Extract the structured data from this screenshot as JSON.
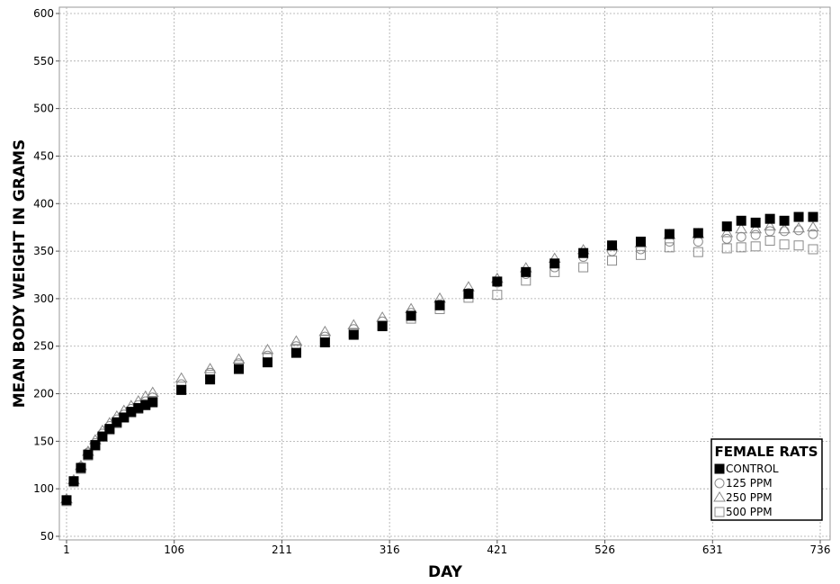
{
  "chart_data": {
    "type": "scatter",
    "title": "",
    "xlabel": "DAY",
    "ylabel": "MEAN BODY WEIGHT IN GRAMS",
    "xlim": [
      1,
      736
    ],
    "ylim": [
      50,
      600
    ],
    "x_ticks": [
      1,
      106,
      211,
      316,
      421,
      526,
      631,
      736
    ],
    "y_ticks": [
      50,
      100,
      150,
      200,
      250,
      300,
      350,
      400,
      450,
      500,
      550,
      600
    ],
    "grid": true,
    "legend": {
      "title": "FEMALE RATS",
      "position": "bottom-right"
    },
    "x": [
      1,
      8,
      15,
      22,
      29,
      36,
      43,
      50,
      57,
      64,
      71,
      78,
      85,
      113,
      141,
      169,
      197,
      225,
      253,
      281,
      309,
      337,
      365,
      393,
      421,
      449,
      477,
      505,
      533,
      561,
      589,
      617,
      645,
      659,
      673,
      687,
      701,
      715,
      729
    ],
    "series": [
      {
        "name": "CONTROL",
        "marker": "filled-square",
        "color": "#000000",
        "values": [
          88,
          108,
          122,
          136,
          146,
          155,
          163,
          170,
          175,
          181,
          185,
          188,
          191,
          204,
          215,
          226,
          233,
          243,
          254,
          262,
          271,
          282,
          293,
          305,
          318,
          328,
          337,
          348,
          356,
          360,
          368,
          369,
          376,
          382,
          380,
          384,
          382,
          386,
          386
        ]
      },
      {
        "name": "125 PPM",
        "marker": "open-circle",
        "color": "#777777",
        "values": [
          88,
          108,
          123,
          138,
          148,
          158,
          166,
          173,
          178,
          184,
          188,
          192,
          196,
          210,
          222,
          232,
          240,
          250,
          260,
          268,
          276,
          285,
          294,
          306,
          317,
          326,
          333,
          344,
          350,
          352,
          360,
          360,
          363,
          365,
          367,
          371,
          371,
          372,
          368
        ]
      },
      {
        "name": "250 PPM",
        "marker": "open-triangle",
        "color": "#777777",
        "values": [
          89,
          109,
          124,
          139,
          151,
          161,
          169,
          176,
          182,
          187,
          192,
          197,
          201,
          216,
          226,
          236,
          246,
          255,
          265,
          272,
          280,
          289,
          300,
          312,
          321,
          332,
          342,
          351,
          355,
          358,
          367,
          368,
          369,
          373,
          373,
          376,
          373,
          374,
          375
        ]
      },
      {
        "name": "500 PPM",
        "marker": "open-square",
        "color": "#777777",
        "values": [
          87,
          107,
          121,
          135,
          145,
          155,
          162,
          169,
          175,
          180,
          184,
          189,
          192,
          204,
          220,
          230,
          238,
          247,
          257,
          264,
          272,
          279,
          289,
          301,
          304,
          319,
          328,
          333,
          340,
          346,
          354,
          349,
          353,
          354,
          355,
          361,
          357,
          356,
          352
        ]
      }
    ]
  }
}
